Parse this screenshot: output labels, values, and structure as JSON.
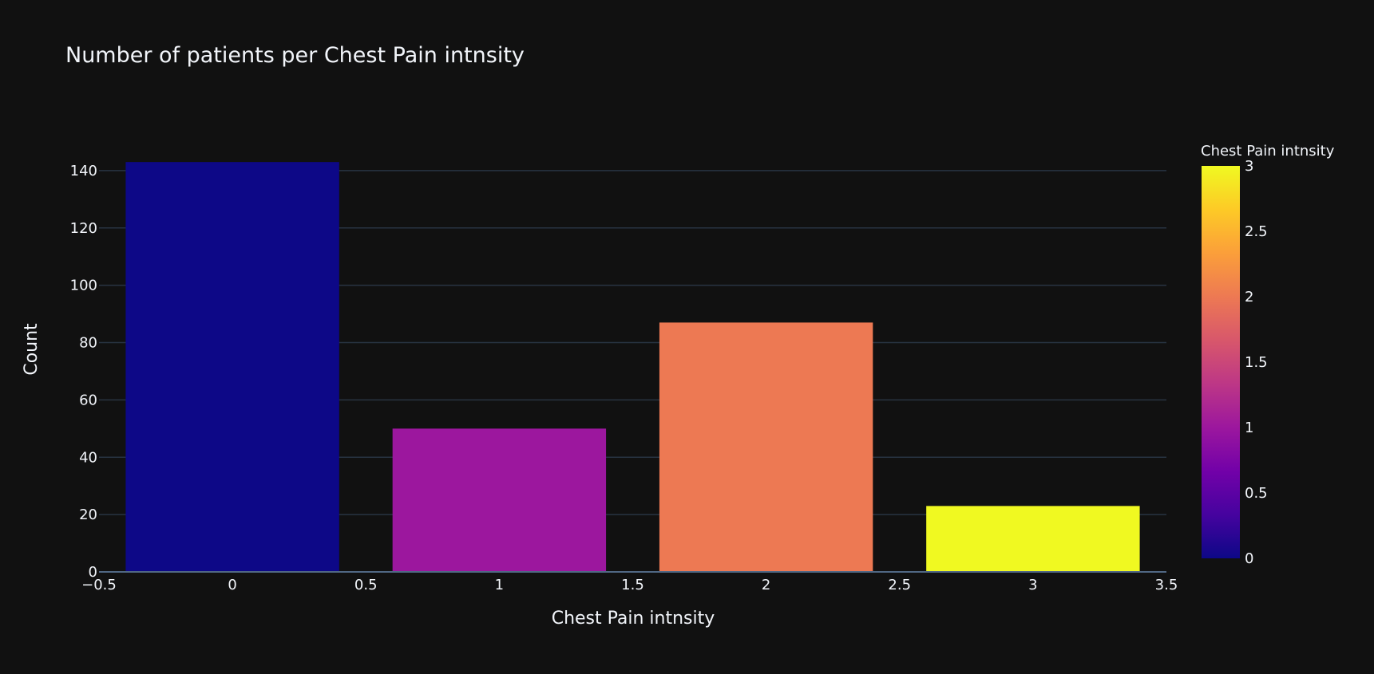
{
  "chart_data": {
    "type": "bar",
    "title": "Number of patients per Chest Pain intnsity",
    "xlabel": "Chest Pain intnsity",
    "ylabel": "Count",
    "categories": [
      0,
      1,
      2,
      3
    ],
    "values": [
      143,
      50,
      87,
      23
    ],
    "xlim": [
      -0.5,
      3.5
    ],
    "ylim": [
      0,
      150
    ],
    "xticks": [
      "−0.5",
      "0",
      "0.5",
      "1",
      "1.5",
      "2",
      "2.5",
      "3",
      "3.5"
    ],
    "xtick_values": [
      -0.5,
      0,
      0.5,
      1,
      1.5,
      2,
      2.5,
      3,
      3.5
    ],
    "yticks": [
      0,
      20,
      40,
      60,
      80,
      100,
      120,
      140
    ],
    "grid": true,
    "colorbar": {
      "title": "Chest Pain intnsity",
      "range": [
        0,
        3
      ],
      "ticks": [
        "0",
        "0.5",
        "1",
        "1.5",
        "2",
        "2.5",
        "3"
      ],
      "tick_values": [
        0,
        0.5,
        1,
        1.5,
        2,
        2.5,
        3
      ],
      "colorscale": [
        "#0d0887",
        "#46039f",
        "#7201a8",
        "#9c179e",
        "#bd3786",
        "#d8576b",
        "#ed7953",
        "#fb9f3a",
        "#fdca26",
        "#f0f921"
      ]
    },
    "bar_colors": [
      "#0d0887",
      "#9c179e",
      "#ed7953",
      "#f0f921"
    ],
    "background": "#111111",
    "grid_color": "#283442"
  }
}
